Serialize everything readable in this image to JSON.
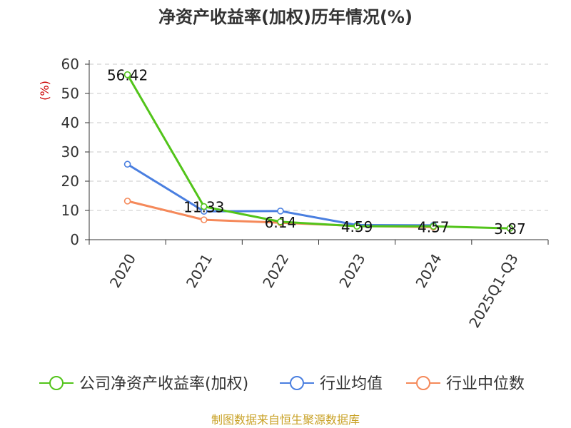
{
  "chart_data": {
    "type": "line",
    "title": "净资产收益率(加权)历年情况(%)",
    "ylabel": "(%)",
    "categories": [
      "2020",
      "2021",
      "2022",
      "2023",
      "2024",
      "2025Q1-Q3"
    ],
    "ylim": [
      0,
      60
    ],
    "yticks": [
      0,
      10,
      20,
      30,
      40,
      50,
      60
    ],
    "grid": "horizontal-dashed",
    "legend_position": "bottom",
    "series": [
      {
        "name": "公司净资产收益率(加权)",
        "color": "#52c41a",
        "values": [
          56.42,
          11.33,
          6.14,
          4.59,
          4.57,
          3.87
        ],
        "labels": [
          "56.42",
          "11.33",
          "6.14",
          "4.59",
          "4.57",
          "3.87"
        ]
      },
      {
        "name": "行业均值",
        "color": "#4a7fe0",
        "values": [
          25.8,
          9.7,
          9.8,
          5.0,
          4.9,
          null
        ]
      },
      {
        "name": "行业中位数",
        "color": "#f5895a",
        "values": [
          13.2,
          6.8,
          5.8,
          4.7,
          4.3,
          null
        ]
      }
    ]
  },
  "footer": "制图数据来自恒生聚源数据库"
}
